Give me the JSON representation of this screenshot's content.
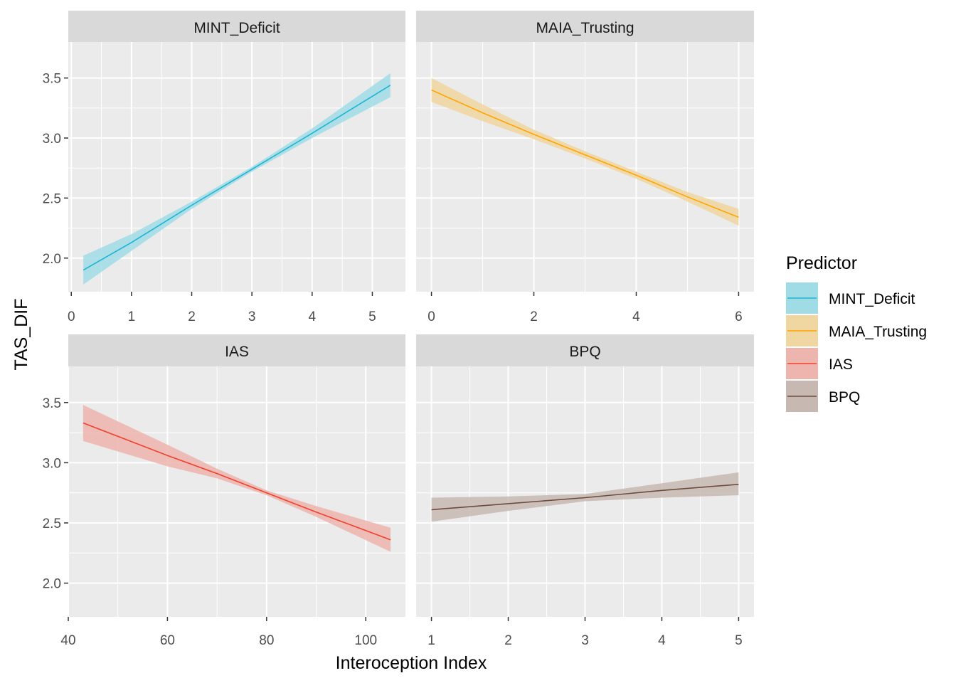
{
  "chart_data": {
    "type": "line",
    "xlabel": "Interoception Index",
    "ylabel": "TAS_DIF",
    "legend_title": "Predictor",
    "legend_position": "right",
    "ylim": [
      1.72,
      3.8
    ],
    "y_ticks": [
      2.0,
      2.5,
      3.0,
      3.5
    ],
    "y_tick_labels": [
      "2.0",
      "2.5",
      "3.0",
      "3.5"
    ],
    "panels": [
      {
        "name": "MINT_Deficit",
        "color": "#1EB4D2",
        "band_color": "#A0DCE6",
        "xlim": [
          -0.05,
          5.55
        ],
        "x_ticks": [
          0,
          1,
          2,
          3,
          4,
          5
        ],
        "x_tick_labels": [
          "0",
          "1",
          "2",
          "3",
          "4",
          "5"
        ],
        "x": [
          0.2,
          1.0,
          2.0,
          3.0,
          4.0,
          5.3
        ],
        "y": [
          1.9,
          2.13,
          2.44,
          2.74,
          3.04,
          3.44
        ],
        "lower": [
          1.78,
          2.06,
          2.41,
          2.72,
          3.0,
          3.34
        ],
        "upper": [
          2.02,
          2.2,
          2.47,
          2.76,
          3.08,
          3.54
        ]
      },
      {
        "name": "MAIA_Trusting",
        "color": "#FFA500",
        "band_color": "#F0D6A0",
        "xlim": [
          -0.3,
          6.3
        ],
        "x_ticks": [
          0,
          2,
          4,
          6
        ],
        "x_tick_labels": [
          "0",
          "2",
          "4",
          "6"
        ],
        "x": [
          0,
          1,
          2,
          3,
          4,
          5,
          6
        ],
        "y": [
          3.4,
          3.21,
          3.03,
          2.86,
          2.69,
          2.51,
          2.34
        ],
        "lower": [
          3.3,
          3.14,
          2.99,
          2.83,
          2.66,
          2.47,
          2.27
        ],
        "upper": [
          3.5,
          3.28,
          3.07,
          2.89,
          2.72,
          2.55,
          2.41
        ]
      },
      {
        "name": "IAS",
        "color": "#F0412D",
        "band_color": "#EEB4AE",
        "xlim": [
          40,
          108
        ],
        "x_ticks": [
          40,
          60,
          80,
          100
        ],
        "x_tick_labels": [
          "40",
          "60",
          "80",
          "100"
        ],
        "x": [
          43,
          60,
          70,
          80,
          90,
          105
        ],
        "y": [
          3.33,
          3.06,
          2.91,
          2.75,
          2.59,
          2.36
        ],
        "lower": [
          3.18,
          2.97,
          2.87,
          2.73,
          2.55,
          2.26
        ],
        "upper": [
          3.48,
          3.15,
          2.95,
          2.77,
          2.64,
          2.46
        ]
      },
      {
        "name": "BPQ",
        "color": "#6E4B3F",
        "band_color": "#C7B9B2",
        "xlim": [
          0.8,
          5.2
        ],
        "x_ticks": [
          1,
          2,
          3,
          4,
          5
        ],
        "x_tick_labels": [
          "1",
          "2",
          "3",
          "4",
          "5"
        ],
        "x": [
          1,
          2,
          3,
          4,
          5
        ],
        "y": [
          2.61,
          2.66,
          2.71,
          2.77,
          2.82
        ],
        "lower": [
          2.51,
          2.6,
          2.68,
          2.71,
          2.73
        ],
        "upper": [
          2.71,
          2.72,
          2.74,
          2.83,
          2.92
        ]
      }
    ],
    "legend": [
      {
        "label": "MINT_Deficit",
        "color": "#1EB4D2",
        "band_color": "#A0DCE6"
      },
      {
        "label": "MAIA_Trusting",
        "color": "#FFA500",
        "band_color": "#F0D6A0"
      },
      {
        "label": "IAS",
        "color": "#F0412D",
        "band_color": "#EEB4AE"
      },
      {
        "label": "BPQ",
        "color": "#6E4B3F",
        "band_color": "#C7B9B2"
      }
    ],
    "panel_background": "#EBEBEB",
    "strip_background": "#D9D9D9",
    "grid": true
  }
}
